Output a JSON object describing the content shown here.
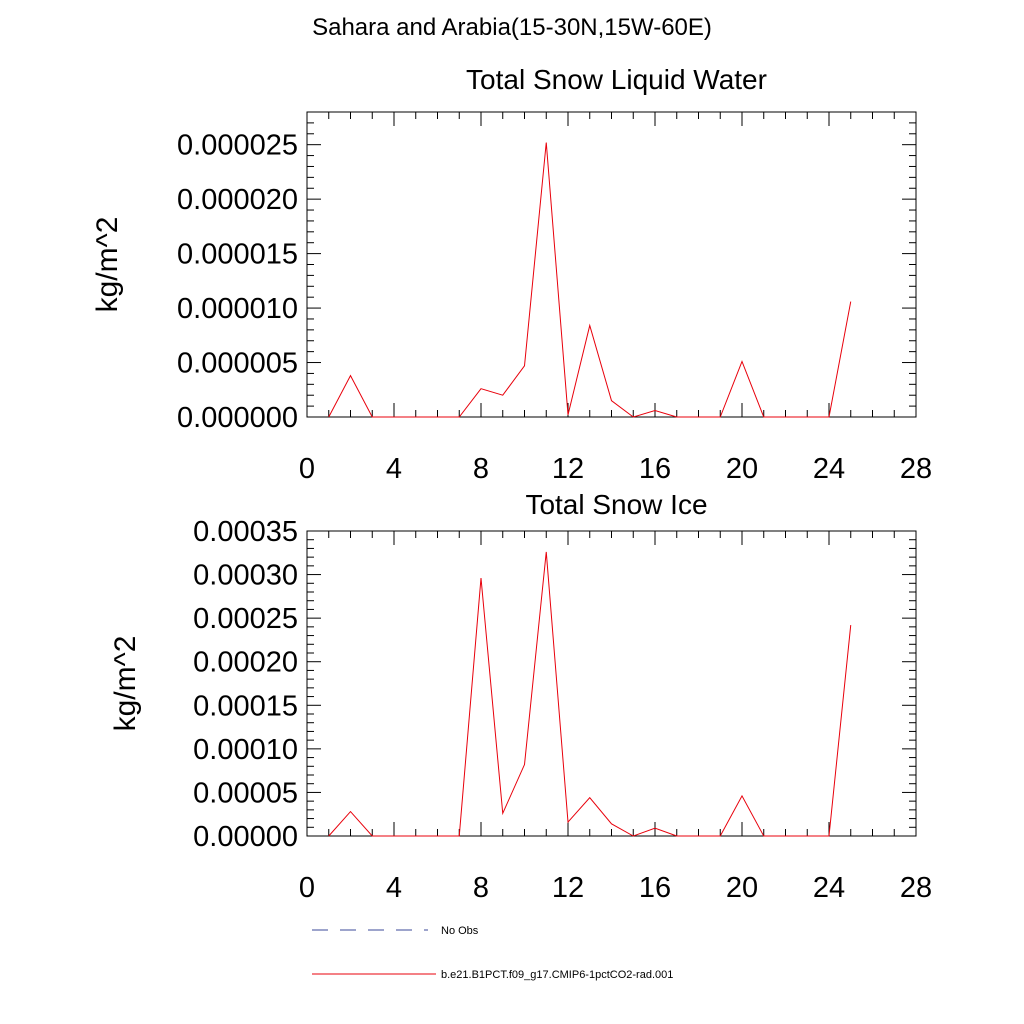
{
  "page": {
    "title": "Sahara and Arabia(15-30N,15W-60E)"
  },
  "legend": {
    "entries": [
      {
        "label": "No Obs",
        "style": "dashed",
        "color": "#3b4a9a"
      },
      {
        "label": "b.e21.B1PCT.f09_g17.CMIP6-1pctCO2-rad.001",
        "style": "solid",
        "color": "#e8000b"
      }
    ]
  },
  "chart_data": [
    {
      "type": "line",
      "title": "Total Snow Liquid Water",
      "xlabel": "",
      "ylabel": "kg/m^2",
      "xlim": [
        0,
        28
      ],
      "ylim": [
        0,
        2.8e-05
      ],
      "xticks": [
        0,
        4,
        8,
        12,
        16,
        20,
        24,
        28
      ],
      "xtick_labels": [
        "0",
        "4",
        "8",
        "12",
        "16",
        "20",
        "24",
        "28"
      ],
      "yticks": [
        0,
        5e-06,
        1e-05,
        1.5e-05,
        2e-05,
        2.5e-05
      ],
      "ytick_labels": [
        "0.000000",
        "0.000005",
        "0.000010",
        "0.000015",
        "0.000020",
        "0.000025"
      ],
      "grid": false,
      "series": [
        {
          "name": "b.e21.B1PCT.f09_g17.CMIP6-1pctCO2-rad.001",
          "color": "#e8000b",
          "x": [
            1,
            2,
            3,
            4,
            5,
            6,
            7,
            8,
            9,
            10,
            11,
            12,
            13,
            14,
            15,
            16,
            17,
            18,
            19,
            20,
            21,
            22,
            23,
            24,
            25
          ],
          "values": [
            0,
            3.8e-06,
            0,
            0,
            0,
            0,
            0,
            2.6e-06,
            2e-06,
            4.7e-06,
            2.52e-05,
            2e-07,
            8.4e-06,
            1.5e-06,
            0,
            6e-07,
            0,
            0,
            0,
            5.1e-06,
            0,
            0,
            0,
            0,
            1.06e-05
          ]
        }
      ]
    },
    {
      "type": "line",
      "title": "Total Snow Ice",
      "xlabel": "",
      "ylabel": "kg/m^2",
      "xlim": [
        0,
        28
      ],
      "ylim": [
        0,
        0.00035
      ],
      "xticks": [
        0,
        4,
        8,
        12,
        16,
        20,
        24,
        28
      ],
      "xtick_labels": [
        "0",
        "4",
        "8",
        "12",
        "16",
        "20",
        "24",
        "28"
      ],
      "yticks": [
        0,
        5e-05,
        0.0001,
        0.00015,
        0.0002,
        0.00025,
        0.0003,
        0.00035
      ],
      "ytick_labels": [
        "0.00000",
        "0.00005",
        "0.00010",
        "0.00015",
        "0.00020",
        "0.00025",
        "0.00030",
        "0.00035"
      ],
      "grid": false,
      "series": [
        {
          "name": "b.e21.B1PCT.f09_g17.CMIP6-1pctCO2-rad.001",
          "color": "#e8000b",
          "x": [
            1,
            2,
            3,
            4,
            5,
            6,
            7,
            8,
            9,
            10,
            11,
            12,
            13,
            14,
            15,
            16,
            17,
            18,
            19,
            20,
            21,
            22,
            23,
            24,
            25
          ],
          "values": [
            0,
            2.8e-05,
            0,
            0,
            0,
            0,
            0,
            0.000296,
            2.6e-05,
            8.2e-05,
            0.000326,
            1.6e-05,
            4.4e-05,
            1.4e-05,
            0,
            9e-06,
            0,
            0,
            0,
            4.6e-05,
            0,
            0,
            0,
            0,
            0.000242
          ]
        }
      ]
    }
  ]
}
